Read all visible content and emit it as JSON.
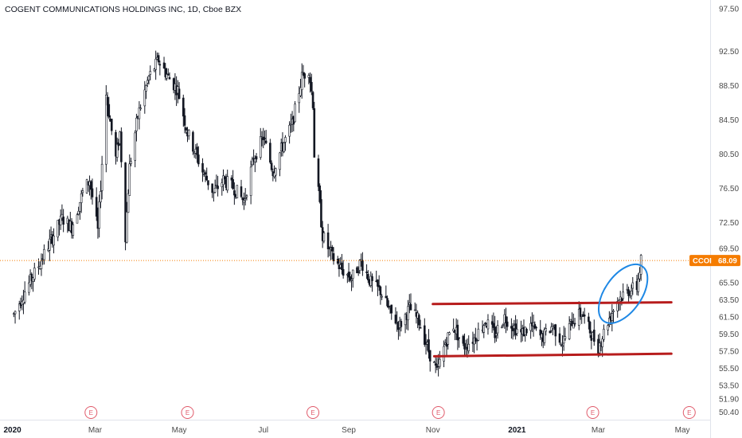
{
  "header": {
    "title": "COGENT COMMUNICATIONS HOLDINGS INC, 1D, Cboe BZX"
  },
  "colors": {
    "candle": "#131722",
    "price_line": "#f57c00",
    "price_tag_bg": "#f57c00",
    "channel_line": "#b71c1c",
    "highlight_ellipse": "#1e88e5",
    "earnings_marker": "#e05a6a",
    "axis_text": "#4a4a4a"
  },
  "price_tag": {
    "symbol": "CCOI",
    "value": "68.09"
  },
  "chart_data": {
    "type": "candlestick",
    "title": "COGENT COMMUNICATIONS HOLDINGS INC, 1D, Cboe BZX",
    "xlabel": "",
    "ylabel": "",
    "ylim": [
      49.5,
      98.5
    ],
    "y_ticks": [
      "97.50",
      "92.50",
      "88.50",
      "84.50",
      "80.50",
      "76.50",
      "72.50",
      "69.50",
      "65.50",
      "63.50",
      "61.50",
      "59.50",
      "57.50",
      "55.50",
      "53.50",
      "51.90",
      "50.40"
    ],
    "x_ticks": [
      {
        "label": "2020",
        "date": "2020-01-01",
        "bold": true
      },
      {
        "label": "Mar",
        "date": "2020-03-01",
        "bold": false
      },
      {
        "label": "May",
        "date": "2020-05-01",
        "bold": false
      },
      {
        "label": "Jul",
        "date": "2020-07-01",
        "bold": false
      },
      {
        "label": "Sep",
        "date": "2020-09-01",
        "bold": false
      },
      {
        "label": "Nov",
        "date": "2020-11-01",
        "bold": false
      },
      {
        "label": "2021",
        "date": "2021-01-01",
        "bold": true
      },
      {
        "label": "Mar",
        "date": "2021-03-01",
        "bold": false
      },
      {
        "label": "May",
        "date": "2021-05-01",
        "bold": false
      }
    ],
    "last_price": 68.09,
    "earnings_markers": [
      {
        "label": "E",
        "date": "2020-02-27"
      },
      {
        "label": "E",
        "date": "2020-05-07"
      },
      {
        "label": "E",
        "date": "2020-08-06"
      },
      {
        "label": "E",
        "date": "2020-11-05"
      },
      {
        "label": "E",
        "date": "2021-02-25"
      },
      {
        "label": "E",
        "date": "2021-05-06"
      }
    ],
    "trendlines": [
      {
        "name": "channel-top",
        "x": [
          "2020-11-01",
          "2021-04-23"
        ],
        "y": [
          63.0,
          63.2
        ]
      },
      {
        "name": "channel-bottom",
        "x": [
          "2020-11-02",
          "2021-04-23"
        ],
        "y": [
          56.9,
          57.2
        ]
      }
    ],
    "highlight_ellipse": {
      "center_date": "2021-03-19",
      "center_price": 64.2,
      "span_days": 14,
      "span_price": 3.4
    },
    "series_path": [
      [
        "2020-01-02",
        61.8
      ],
      [
        "2020-01-10",
        64.5
      ],
      [
        "2020-01-20",
        67.5
      ],
      [
        "2020-01-29",
        70.5
      ],
      [
        "2020-02-06",
        73.0
      ],
      [
        "2020-02-13",
        72.0
      ],
      [
        "2020-02-21",
        76.0
      ],
      [
        "2020-02-26",
        77.5
      ],
      [
        "2020-03-03",
        71.5
      ],
      [
        "2020-03-09",
        87.5
      ],
      [
        "2020-03-16",
        80.0
      ],
      [
        "2020-03-19",
        83.0
      ],
      [
        "2020-03-23",
        71.0
      ],
      [
        "2020-03-26",
        79.0
      ],
      [
        "2020-04-01",
        85.0
      ],
      [
        "2020-04-09",
        89.5
      ],
      [
        "2020-04-16",
        91.5
      ],
      [
        "2020-04-23",
        89.5
      ],
      [
        "2020-04-30",
        88.0
      ],
      [
        "2020-05-07",
        83.0
      ],
      [
        "2020-05-12",
        81.0
      ],
      [
        "2020-05-18",
        78.5
      ],
      [
        "2020-05-26",
        76.0
      ],
      [
        "2020-06-02",
        77.5
      ],
      [
        "2020-06-10",
        76.5
      ],
      [
        "2020-06-17",
        75.0
      ],
      [
        "2020-06-24",
        80.0
      ],
      [
        "2020-07-01",
        82.5
      ],
      [
        "2020-07-08",
        78.5
      ],
      [
        "2020-07-15",
        81.5
      ],
      [
        "2020-07-22",
        84.0
      ],
      [
        "2020-07-29",
        89.5
      ],
      [
        "2020-08-03",
        90.5
      ],
      [
        "2020-08-06",
        86.5
      ],
      [
        "2020-08-07",
        80.5
      ],
      [
        "2020-08-10",
        76.0
      ],
      [
        "2020-08-13",
        71.0
      ],
      [
        "2020-08-20",
        68.5
      ],
      [
        "2020-08-27",
        67.0
      ],
      [
        "2020-09-03",
        66.0
      ],
      [
        "2020-09-10",
        68.0
      ],
      [
        "2020-09-17",
        65.5
      ],
      [
        "2020-09-24",
        64.5
      ],
      [
        "2020-10-01",
        62.0
      ],
      [
        "2020-10-08",
        60.5
      ],
      [
        "2020-10-15",
        62.5
      ],
      [
        "2020-10-22",
        61.0
      ],
      [
        "2020-10-29",
        57.5
      ],
      [
        "2020-11-04",
        55.0
      ],
      [
        "2020-11-10",
        58.5
      ],
      [
        "2020-11-16",
        60.5
      ],
      [
        "2020-11-23",
        58.0
      ],
      [
        "2020-12-01",
        59.0
      ],
      [
        "2020-12-09",
        61.0
      ],
      [
        "2020-12-16",
        59.5
      ],
      [
        "2020-12-23",
        61.5
      ],
      [
        "2021-01-04",
        59.5
      ],
      [
        "2021-01-11",
        60.5
      ],
      [
        "2021-01-19",
        59.0
      ],
      [
        "2021-01-27",
        60.5
      ],
      [
        "2021-02-03",
        58.5
      ],
      [
        "2021-02-10",
        61.0
      ],
      [
        "2021-02-17",
        62.0
      ],
      [
        "2021-02-24",
        59.5
      ],
      [
        "2021-03-01",
        58.0
      ],
      [
        "2021-03-08",
        61.0
      ],
      [
        "2021-03-15",
        63.5
      ],
      [
        "2021-03-22",
        64.5
      ],
      [
        "2021-03-29",
        65.0
      ],
      [
        "2021-04-01",
        68.09
      ]
    ],
    "price_range": [
      53.0,
      93.0
    ]
  }
}
